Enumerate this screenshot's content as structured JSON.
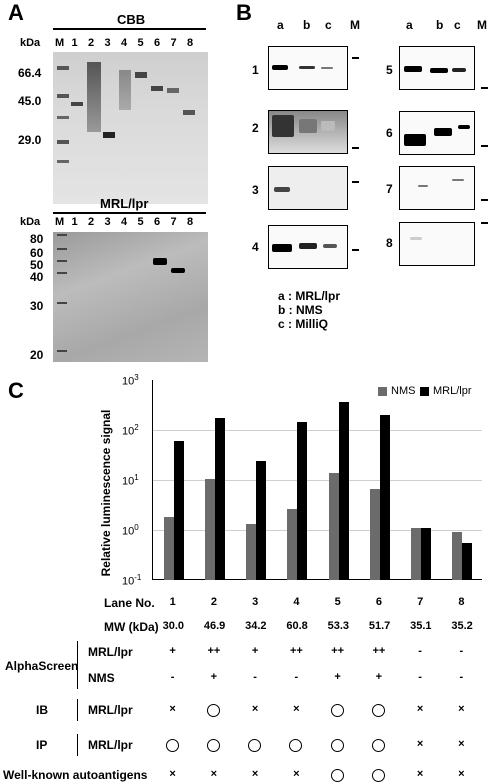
{
  "panelA": {
    "letter": "A",
    "cbb": {
      "title": "CBB",
      "kda": "kDa",
      "lanes": [
        "M",
        "1",
        "2",
        "3",
        "4",
        "5",
        "6",
        "7",
        "8"
      ],
      "markers": [
        "66.4",
        "45.0",
        "29.0"
      ]
    },
    "mrl": {
      "title": "MRL/lpr",
      "kda": "kDa",
      "lanes": [
        "M",
        "1",
        "2",
        "3",
        "4",
        "5",
        "6",
        "7",
        "8"
      ],
      "markers": [
        "80",
        "60",
        "50",
        "40",
        "30",
        "20"
      ]
    }
  },
  "panelB": {
    "letter": "B",
    "col_headers": [
      "a",
      "b",
      "c",
      "M"
    ],
    "blot_numbers": [
      "1",
      "2",
      "3",
      "4",
      "5",
      "6",
      "7",
      "8"
    ],
    "legend": [
      "a : MRL/lpr",
      "b : NMS",
      "c : MilliQ"
    ]
  },
  "panelC": {
    "letter": "C",
    "legend": {
      "nms": "NMS",
      "mrl": "MRL/lpr"
    },
    "colors": {
      "nms": "#6b6b6b",
      "mrl": "#000000"
    },
    "y_ticks": [
      {
        "base": "10",
        "exp": "3"
      },
      {
        "base": "10",
        "exp": "2"
      },
      {
        "base": "10",
        "exp": "1"
      },
      {
        "base": "10",
        "exp": "0"
      },
      {
        "base": "10",
        "exp": "-1"
      }
    ]
  },
  "chart_data": {
    "type": "bar",
    "ylabel": "Relative luminescence signal",
    "yscale": "log",
    "ylim": [
      0.1,
      1000
    ],
    "grid": true,
    "legend_position": "top-right",
    "categories": [
      "1",
      "2",
      "3",
      "4",
      "5",
      "6",
      "7",
      "8"
    ],
    "series": [
      {
        "name": "NMS",
        "color": "#6b6b6b",
        "values": [
          1.8,
          10.5,
          1.3,
          2.6,
          13.5,
          6.5,
          1.1,
          0.9
        ]
      },
      {
        "name": "MRL/lpr",
        "color": "#000000",
        "values": [
          60,
          175,
          24,
          145,
          360,
          200,
          1.1,
          0.55
        ]
      }
    ]
  },
  "table": {
    "lane_label": "Lane No.",
    "mw_label": "MW (kDa)",
    "lanes": [
      "1",
      "2",
      "3",
      "4",
      "5",
      "6",
      "7",
      "8"
    ],
    "mw": [
      "30.0",
      "46.9",
      "34.2",
      "60.8",
      "53.3",
      "51.7",
      "35.1",
      "35.2"
    ],
    "alpha_label": "AlphaScreen",
    "alpha_mrl_label": "MRL/lpr",
    "alpha_nms_label": "NMS",
    "alpha_mrl": [
      "+",
      "++",
      "+",
      "++",
      "++",
      "++",
      "-",
      "-"
    ],
    "alpha_nms": [
      "-",
      "+",
      "-",
      "-",
      "+",
      "+",
      "-",
      "-"
    ],
    "ib_label": "IB",
    "ib_sub": "MRL/lpr",
    "ib": [
      "×",
      "○",
      "×",
      "×",
      "○",
      "○",
      "×",
      "×"
    ],
    "ip_label": "IP",
    "ip_sub": "MRL/lpr",
    "ip": [
      "○",
      "○",
      "○",
      "○",
      "○",
      "○",
      "×",
      "×"
    ],
    "wk_label": "Well-known autoantigens",
    "wk": [
      "×",
      "×",
      "×",
      "×",
      "○",
      "○",
      "×",
      "×"
    ]
  }
}
